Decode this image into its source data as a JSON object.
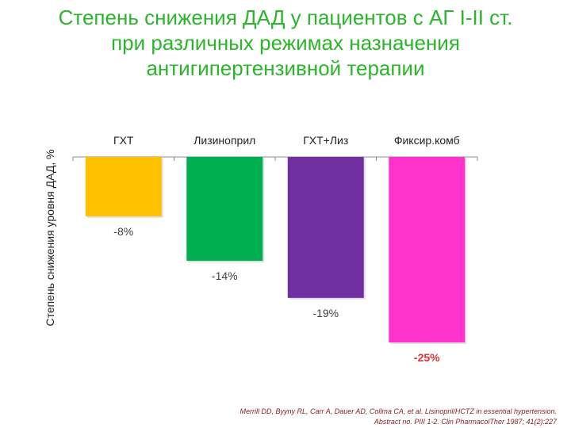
{
  "title_lines": [
    "Степень снижения ДАД у пациентов с АГ I-II ст.",
    "при различных режимах назначения",
    "антигипертензивной терапии"
  ],
  "chart_data": {
    "type": "bar",
    "categories": [
      "ГХТ",
      "Лизиноприл",
      "ГХТ+Лиз",
      "Фиксир.комб"
    ],
    "values": [
      -8,
      -14,
      -19,
      -25
    ],
    "value_labels": [
      "-8%",
      "-14%",
      "-19%",
      "-25%"
    ],
    "ylabel": "Степень снижения уровня ДАД, %",
    "ylim": [
      -25,
      0
    ],
    "colors": [
      "#ffc000",
      "#00b050",
      "#7030a0",
      "#ff33cc"
    ],
    "label_colors": [
      "#404040",
      "#404040",
      "#404040",
      "#e03030"
    ],
    "grid": false
  },
  "reference_lines": [
    "Merrill DD, Byyny RL, Carr A, Dauer AD, Collma CA, et al. Lisinopril/HCTZ in essential hypertension.",
    "Abstract no. PIII 1-2. Clin    PharmacolTher 1987; 41(2):227"
  ]
}
